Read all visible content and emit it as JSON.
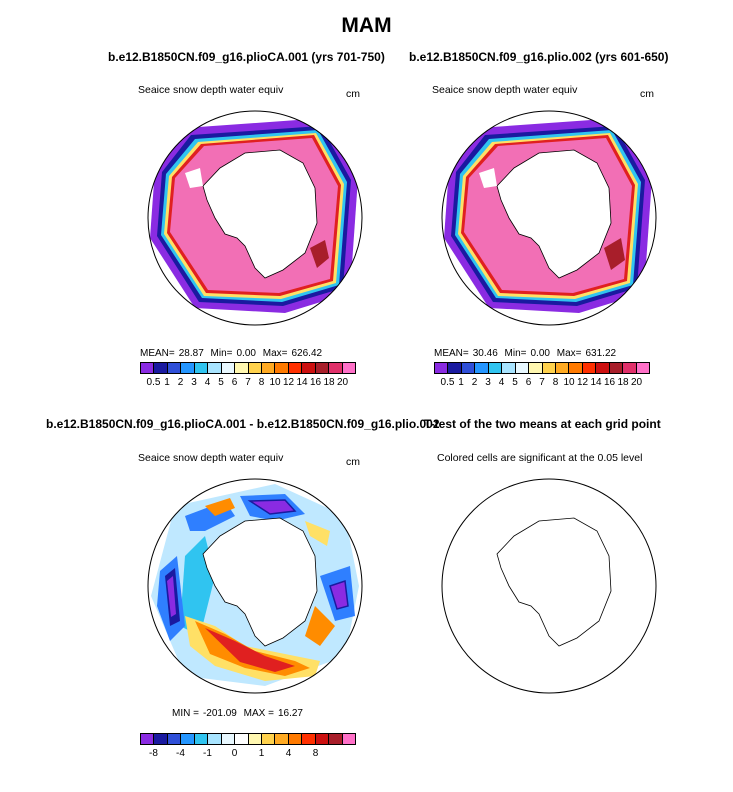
{
  "title": "MAM",
  "panels": [
    {
      "title": "b.e12.B1850CN.f09_g16.plioCA.001 (yrs 701-750)",
      "variable": "Seaice snow depth water equiv",
      "unit": "cm",
      "stats": {
        "mean_label": "MEAN=",
        "mean": "28.87",
        "min_label": "Min=",
        "min": "0.00",
        "max_label": "Max=",
        "max": "626.42"
      }
    },
    {
      "title": "b.e12.B1850CN.f09_g16.plio.002 (yrs 601-650)",
      "variable": "Seaice snow depth water equiv",
      "unit": "cm",
      "stats": {
        "mean_label": "MEAN=",
        "mean": "30.46",
        "min_label": "Min=",
        "min": "0.00",
        "max_label": "Max=",
        "max": "631.22"
      }
    },
    {
      "title": "b.e12.B1850CN.f09_g16.plioCA.001 - b.e12.B1850CN.f09_g16.plio.002",
      "variable": "Seaice snow depth water equiv",
      "unit": "cm",
      "stats": {
        "min_label": "MIN =",
        "min": "-201.09",
        "max_label": "MAX =",
        "max": "16.27"
      }
    },
    {
      "title": "T-test of the two means at each grid point",
      "variable": "Colored cells are significant at the 0.05 level"
    }
  ],
  "colorbar_abs": {
    "colors": [
      "#8a2be2",
      "#1a1aa0",
      "#2f4fd8",
      "#2596ff",
      "#30c4f0",
      "#a8e4ff",
      "#e8f8ff",
      "#fff7b0",
      "#ffd24d",
      "#ffaa22",
      "#ff7a00",
      "#ff3000",
      "#cc1010",
      "#a81e2a",
      "#e0306a",
      "#ff70c8"
    ],
    "ticks": [
      "0.5",
      "1",
      "2",
      "3",
      "4",
      "5",
      "6",
      "7",
      "8",
      "10",
      "12",
      "14",
      "16",
      "18",
      "20"
    ]
  },
  "colorbar_diff": {
    "colors": [
      "#8a2be2",
      "#1a1aa0",
      "#2f4fd8",
      "#2596ff",
      "#30c4f0",
      "#a8e4ff",
      "#e8f8ff",
      "#ffffff",
      "#fff7b0",
      "#ffd24d",
      "#ffaa22",
      "#ff7a00",
      "#ff3000",
      "#cc1010",
      "#a81e2a",
      "#ff70c8"
    ],
    "ticks": [
      "-8",
      "-4",
      "-1",
      "0",
      "1",
      "4",
      "8"
    ]
  },
  "map_colors": {
    "pink": "#f26fb5",
    "purple": "#8a2be2",
    "navy": "#1a1aa0",
    "blue": "#2f7fff",
    "cyan": "#30c4f0",
    "yellow": "#ffe066",
    "orange": "#ff8c00",
    "red": "#e02020",
    "darkred": "#a81e2a",
    "lightblue": "#bfe8ff"
  }
}
